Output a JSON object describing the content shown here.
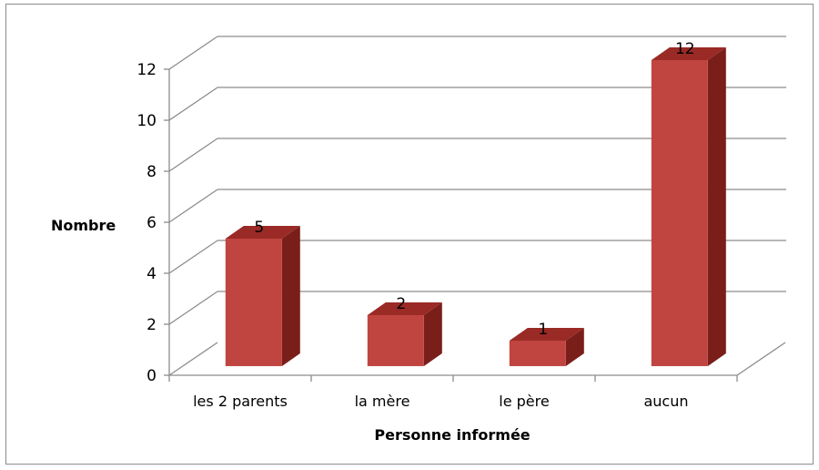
{
  "chart_data": {
    "type": "bar",
    "three_d": true,
    "categories": [
      "les 2 parents",
      "la mère",
      "le père",
      "aucun"
    ],
    "values": [
      5,
      2,
      1,
      12
    ],
    "data_labels": [
      "5",
      "2",
      "1",
      "12"
    ],
    "xlabel": "Personne informée",
    "ylabel": "Nombre",
    "ylim": [
      0,
      12
    ],
    "yticks": [
      "0",
      "2",
      "4",
      "6",
      "8",
      "10",
      "12"
    ],
    "grid": true,
    "legend": "none",
    "colors": {
      "bar_front": "#c0443f",
      "bar_side": "#7a1e1a",
      "bar_top": "#9a2a25",
      "grid": "#8c8c8c"
    }
  }
}
